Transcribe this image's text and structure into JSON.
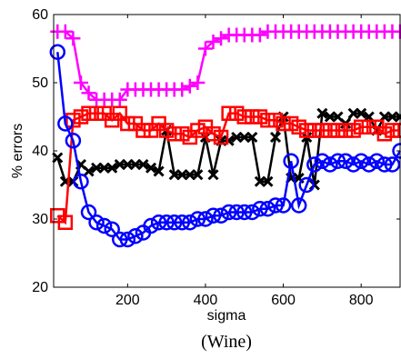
{
  "chart_data": {
    "type": "line",
    "caption": "(Wine)",
    "xlabel": "sigma",
    "ylabel": "% errors",
    "xlim": [
      10,
      900
    ],
    "ylim": [
      20,
      60
    ],
    "xticks": [
      200,
      400,
      600,
      800
    ],
    "yticks": [
      20,
      30,
      40,
      50,
      60
    ],
    "grid": false,
    "series": [
      {
        "marker": "plus",
        "color": "#ff00ff",
        "x": [
          20,
          40,
          60,
          80,
          100,
          120,
          140,
          160,
          180,
          200,
          220,
          240,
          260,
          280,
          300,
          320,
          340,
          360,
          380,
          400,
          420,
          440,
          460,
          480,
          500,
          520,
          540,
          560,
          580,
          600,
          620,
          640,
          660,
          680,
          700,
          720,
          740,
          760,
          780,
          800,
          820,
          840,
          860,
          880,
          900
        ],
        "y": [
          57.5,
          57.5,
          56.5,
          50,
          48.5,
          47.5,
          47.5,
          47.5,
          47.5,
          49,
          49,
          49,
          49,
          49,
          49,
          49,
          49,
          49.5,
          50,
          55,
          56,
          56.5,
          57,
          57,
          57,
          57,
          57,
          57.5,
          57.5,
          57.5,
          57.5,
          57.5,
          57.5,
          57.5,
          57.5,
          57.5,
          57.5,
          57.5,
          57.5,
          57.5,
          57.5,
          57.5,
          57.5,
          57.5,
          57.5
        ]
      },
      {
        "marker": "x",
        "color": "#000000",
        "x": [
          20,
          40,
          60,
          80,
          100,
          120,
          140,
          160,
          180,
          200,
          220,
          240,
          260,
          280,
          300,
          320,
          340,
          360,
          380,
          400,
          420,
          440,
          460,
          480,
          500,
          520,
          540,
          560,
          580,
          600,
          620,
          640,
          660,
          680,
          700,
          720,
          740,
          760,
          780,
          800,
          820,
          840,
          860,
          880,
          900
        ],
        "y": [
          39,
          35.5,
          35.5,
          38,
          37,
          37.5,
          37.5,
          37.5,
          38,
          38,
          38,
          38,
          37.5,
          37,
          43,
          36.5,
          36.5,
          36.5,
          36.5,
          42,
          36.5,
          41.5,
          41.5,
          42,
          42,
          42,
          35.5,
          35.5,
          42,
          45,
          36,
          36,
          42,
          35,
          45.5,
          45,
          45,
          44,
          45.5,
          45.5,
          45,
          43,
          45,
          45,
          45
        ]
      },
      {
        "marker": "square",
        "color": "#ff0000",
        "x": [
          20,
          40,
          60,
          80,
          100,
          120,
          140,
          160,
          180,
          200,
          220,
          240,
          260,
          280,
          300,
          320,
          340,
          360,
          380,
          400,
          420,
          440,
          460,
          480,
          500,
          520,
          540,
          560,
          580,
          600,
          620,
          640,
          660,
          680,
          700,
          720,
          740,
          760,
          780,
          800,
          820,
          840,
          860,
          880,
          900
        ],
        "y": [
          30.5,
          29.5,
          44.5,
          45,
          45.5,
          45.5,
          45.5,
          44.5,
          45.5,
          44,
          44,
          43,
          43,
          44,
          43,
          42.5,
          42.5,
          42,
          43,
          43.5,
          42.5,
          42,
          45.5,
          45.5,
          45,
          45,
          45,
          44.5,
          44.5,
          44,
          44,
          43.5,
          43,
          43,
          43,
          43,
          43,
          43,
          43,
          43.5,
          43.5,
          43.5,
          42.5,
          43,
          43
        ]
      },
      {
        "marker": "circle",
        "color": "#0000ff",
        "x": [
          20,
          40,
          60,
          80,
          100,
          120,
          140,
          160,
          180,
          200,
          220,
          240,
          260,
          280,
          300,
          320,
          340,
          360,
          380,
          400,
          420,
          440,
          460,
          480,
          500,
          520,
          540,
          560,
          580,
          600,
          620,
          640,
          660,
          680,
          700,
          720,
          740,
          760,
          780,
          800,
          820,
          840,
          860,
          880,
          900
        ],
        "y": [
          54.5,
          44,
          41.5,
          35.5,
          31,
          29.5,
          29,
          28.5,
          27,
          27,
          27.5,
          28,
          29,
          29.5,
          29.5,
          29.5,
          29.5,
          29.5,
          30,
          30,
          30.5,
          30.5,
          31,
          31,
          31,
          31,
          31.5,
          31.5,
          32,
          32,
          38.5,
          32,
          35,
          38,
          38.5,
          38,
          38.5,
          38.5,
          38,
          38.5,
          38,
          38.5,
          38,
          38,
          40
        ]
      }
    ]
  }
}
